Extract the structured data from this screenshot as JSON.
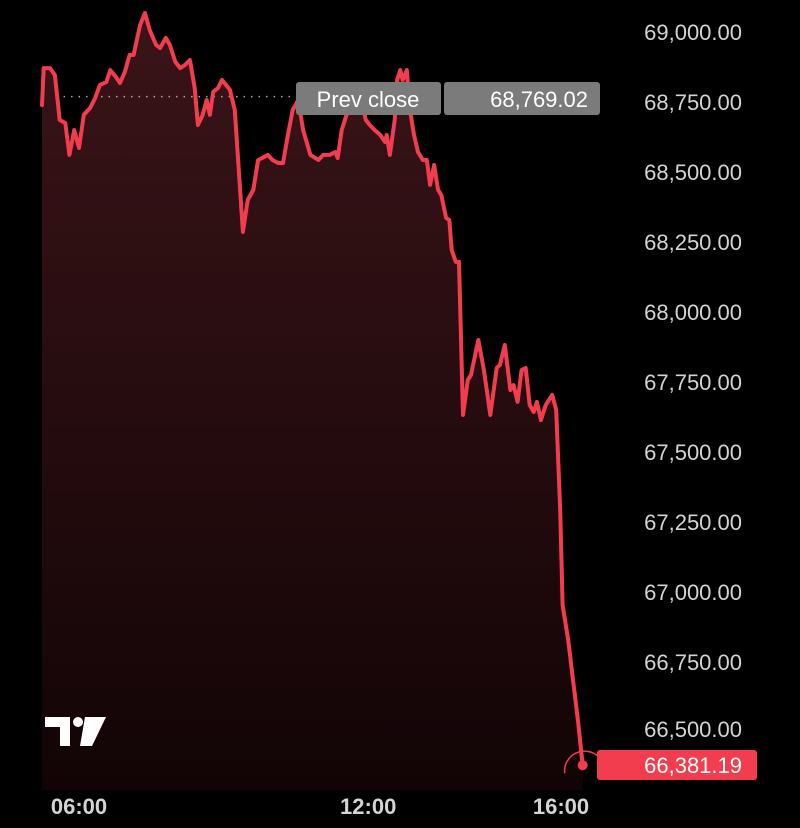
{
  "chart_data": {
    "type": "area",
    "title": "",
    "xlabel": "",
    "ylabel": "",
    "ylim": [
      66300,
      69080
    ],
    "grid": false,
    "line_color": "#f23d4f",
    "fill_color": "#3a1418",
    "y_ticks": [
      "69,000.00",
      "68,750.00",
      "68,500.00",
      "68,250.00",
      "68,000.00",
      "67,750.00",
      "67,500.00",
      "67,250.00",
      "67,000.00",
      "66,750.00",
      "66,500.00"
    ],
    "y_tick_values": [
      69000,
      68750,
      68500,
      68250,
      68000,
      67750,
      67500,
      67250,
      67000,
      66750,
      66500
    ],
    "x_ticks": [
      "06:00",
      "12:00",
      "16:00"
    ],
    "prev_close": {
      "label": "Prev close",
      "value": 68769.02,
      "value_text": "68,769.02"
    },
    "last_price": {
      "value": 66381.19,
      "value_text": "66,381.19",
      "color": "#f23d4f"
    },
    "logo": "TV",
    "series": [
      {
        "x": [
          "05:14",
          "05:16",
          "05:24",
          "05:30",
          "05:36",
          "05:43",
          "05:48",
          "05:54",
          "06:00",
          "06:06",
          "06:14",
          "06:20",
          "06:26",
          "06:34",
          "06:39",
          "06:46",
          "06:51",
          "06:57",
          "07:03",
          "07:08",
          "07:16",
          "07:22",
          "07:28",
          "07:36",
          "07:41",
          "07:48",
          "07:53",
          "08:00",
          "08:06",
          "08:12",
          "08:18",
          "08:24",
          "08:28",
          "08:34",
          "08:39",
          "08:43",
          "08:47",
          "08:53",
          "08:58",
          "09:08",
          "09:14",
          "09:24",
          "09:30",
          "09:37",
          "09:43",
          "09:48",
          "09:55",
          "10:01",
          "10:08",
          "10:14",
          "10:20",
          "10:26",
          "10:33",
          "10:39",
          "10:48",
          "10:58",
          "11:04",
          "11:12",
          "11:19",
          "11:22",
          "11:27",
          "11:35",
          "11:40",
          "11:46",
          "11:52",
          "11:57",
          "12:02",
          "12:08",
          "12:15",
          "12:21",
          "12:23",
          "12:27",
          "12:33",
          "12:36",
          "12:40",
          "12:43",
          "12:48",
          "12:52",
          "12:57",
          "13:02",
          "13:08",
          "13:13",
          "13:17",
          "13:22",
          "13:27",
          "13:31",
          "13:37",
          "13:41",
          "13:44",
          "13:49",
          "13:53",
          "13:58",
          "14:04",
          "14:08",
          "14:17",
          "14:24",
          "14:32",
          "14:40",
          "14:44",
          "14:50",
          "14:57",
          "15:01",
          "15:06",
          "15:11",
          "15:16",
          "15:21",
          "15:26",
          "15:30",
          "15:35",
          "15:41",
          "15:49",
          "15:54",
          "15:59",
          "16:02",
          "16:09",
          "16:15",
          "16:21",
          "16:27"
        ],
        "values": [
          68739,
          68871,
          68871,
          68846,
          68686,
          68675,
          68561,
          68650,
          68586,
          68704,
          68729,
          68764,
          68811,
          68821,
          68864,
          68839,
          68818,
          68857,
          68918,
          68918,
          69025,
          69068,
          69007,
          68954,
          68943,
          68979,
          68954,
          68893,
          68871,
          68882,
          68900,
          68800,
          68668,
          68704,
          68757,
          68704,
          68786,
          68800,
          68829,
          68793,
          68721,
          68286,
          68400,
          68436,
          68543,
          68550,
          68561,
          68543,
          68532,
          68532,
          68632,
          68721,
          68757,
          68650,
          68561,
          68543,
          68561,
          68561,
          68571,
          68550,
          68650,
          68721,
          68750,
          68757,
          68746,
          68686,
          68668,
          68650,
          68632,
          68607,
          68632,
          68561,
          68686,
          68829,
          68864,
          68829,
          68864,
          68721,
          68632,
          68571,
          68543,
          68543,
          68454,
          68525,
          68436,
          68418,
          68336,
          68329,
          68221,
          68179,
          68179,
          67632,
          67757,
          67775,
          67900,
          67793,
          67632,
          67800,
          67811,
          67882,
          67721,
          67739,
          67679,
          67793,
          67800,
          67668,
          67643,
          67679,
          67614,
          67668,
          67704,
          67650,
          67293,
          66954,
          66829,
          66686,
          66543,
          66381.19
        ]
      }
    ]
  }
}
